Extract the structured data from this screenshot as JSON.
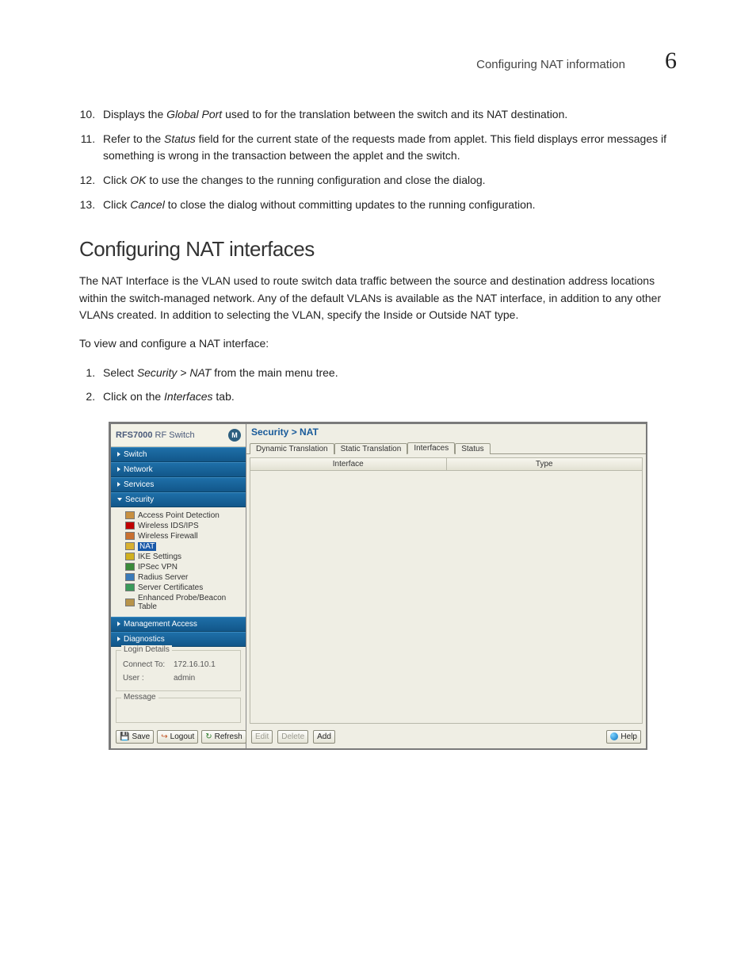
{
  "header": {
    "title": "Configuring NAT information",
    "chapter": "6"
  },
  "list1": {
    "start": 10,
    "items": [
      {
        "pre": "Displays the ",
        "em": "Global Port",
        "post": " used to for the translation between the switch and its NAT destination."
      },
      {
        "pre": "Refer to the ",
        "em": "Status",
        "post": " field for the current state of the requests made from applet. This field displays error messages if something is wrong in the transaction between the applet and the switch."
      },
      {
        "pre": "Click ",
        "em": "OK",
        "post": " to use the changes to the running configuration and close the dialog."
      },
      {
        "pre": "Click ",
        "em": "Cancel",
        "post": " to close the dialog without committing updates to the running configuration."
      }
    ]
  },
  "section_heading": "Configuring NAT interfaces",
  "para1": "The NAT Interface is the VLAN used to route switch data traffic between the source and destination address locations within the switch-managed network. Any of the default VLANs is available as the NAT interface, in addition to any other VLANs created. In addition to selecting the VLAN, specify the Inside or Outside NAT type.",
  "para2": "To view and configure a NAT interface:",
  "steps": [
    {
      "pre": "Select ",
      "em": "Security > NAT",
      "post": " from the main menu tree."
    },
    {
      "pre": "Click on the ",
      "em": "Interfaces",
      "post": " tab."
    }
  ],
  "shot": {
    "sidebar": {
      "product_prefix": "RFS7000",
      "product_suffix": " RF Switch",
      "moto": "M",
      "nav": [
        "Switch",
        "Network",
        "Services",
        "Security",
        "Management Access",
        "Diagnostics"
      ],
      "tree": [
        {
          "label": "Access Point Detection",
          "color": "#c89040"
        },
        {
          "label": "Wireless IDS/IPS",
          "color": "#c00000"
        },
        {
          "label": "Wireless Firewall",
          "color": "#c87030"
        },
        {
          "label": "NAT",
          "color": "#d8b030",
          "selected": true
        },
        {
          "label": "IKE Settings",
          "color": "#d0b020"
        },
        {
          "label": "IPSec VPN",
          "color": "#3a8a3a"
        },
        {
          "label": "Radius Server",
          "color": "#3a7ab8"
        },
        {
          "label": "Server Certificates",
          "color": "#3a9a5a"
        },
        {
          "label": "Enhanced Probe/Beacon Table",
          "color": "#b8944a"
        }
      ],
      "login": {
        "legend": "Login Details",
        "connect_label": "Connect To:",
        "connect_value": "172.16.10.1",
        "user_label": "User :",
        "user_value": "admin"
      },
      "message_legend": "Message",
      "buttons": {
        "save": "Save",
        "logout": "Logout",
        "refresh": "Refresh"
      }
    },
    "main": {
      "breadcrumb": "Security > NAT",
      "tabs": [
        "Dynamic Translation",
        "Static Translation",
        "Interfaces",
        "Status"
      ],
      "active_tab": 2,
      "columns": [
        "Interface",
        "Type"
      ],
      "footer": {
        "edit": "Edit",
        "delete": "Delete",
        "add": "Add",
        "help": "Help"
      }
    }
  }
}
